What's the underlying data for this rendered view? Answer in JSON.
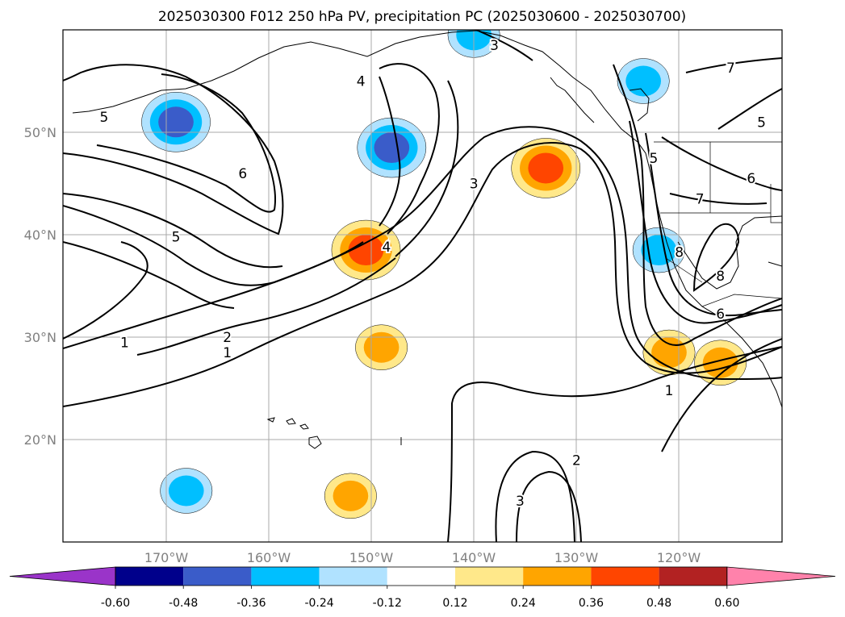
{
  "chart_data": {
    "type": "contour map",
    "title": "2025030300 F012 250 hPa PV, precipitation PC (2025030600 - 2025030700)",
    "map": {
      "lon_range": [
        -180,
        -110
      ],
      "lat_range": [
        10,
        60
      ],
      "grid": true,
      "x_ticks": [
        {
          "value": -170,
          "label": "170°W"
        },
        {
          "value": -160,
          "label": "160°W"
        },
        {
          "value": -150,
          "label": "150°W"
        },
        {
          "value": -140,
          "label": "140°W"
        },
        {
          "value": -130,
          "label": "130°W"
        },
        {
          "value": -120,
          "label": "120°W"
        }
      ],
      "y_ticks": [
        {
          "value": 20,
          "label": "20°N"
        },
        {
          "value": 30,
          "label": "30°N"
        },
        {
          "value": 40,
          "label": "40°N"
        },
        {
          "value": 50,
          "label": "50°N"
        }
      ]
    },
    "contour_labels": [
      {
        "text": "1",
        "lon": -174,
        "lat": 29.5
      },
      {
        "text": "2",
        "lon": -164,
        "lat": 30
      },
      {
        "text": "1",
        "lon": -164,
        "lat": 28.5
      },
      {
        "text": "5",
        "lon": -169,
        "lat": 39.8
      },
      {
        "text": "6",
        "lon": -162.5,
        "lat": 46
      },
      {
        "text": "5",
        "lon": -176,
        "lat": 51.5
      },
      {
        "text": "4",
        "lon": -148.5,
        "lat": 38.8
      },
      {
        "text": "4",
        "lon": -151,
        "lat": 55
      },
      {
        "text": "3",
        "lon": -140,
        "lat": 45
      },
      {
        "text": "3",
        "lon": -138,
        "lat": 58.5
      },
      {
        "text": "5",
        "lon": -122.5,
        "lat": 47.5
      },
      {
        "text": "7",
        "lon": -115,
        "lat": 56.3
      },
      {
        "text": "5",
        "lon": -112,
        "lat": 51
      },
      {
        "text": "6",
        "lon": -113,
        "lat": 45.5
      },
      {
        "text": "7",
        "lon": -118,
        "lat": 43.5
      },
      {
        "text": "8",
        "lon": -120,
        "lat": 38.3
      },
      {
        "text": "8",
        "lon": -116,
        "lat": 36
      },
      {
        "text": "6",
        "lon": -116,
        "lat": 32.3
      },
      {
        "text": "1",
        "lon": -121,
        "lat": 24.8
      },
      {
        "text": "2",
        "lon": -130,
        "lat": 18
      },
      {
        "text": "3",
        "lon": -135.5,
        "lat": 14
      }
    ],
    "colorbar": {
      "ticks": [
        "-0.60",
        "-0.48",
        "-0.36",
        "-0.24",
        "-0.12",
        "0.12",
        "0.24",
        "0.36",
        "0.48",
        "0.60"
      ],
      "boundaries": [
        -0.6,
        -0.48,
        -0.36,
        -0.24,
        -0.12,
        0.12,
        0.24,
        0.36,
        0.48,
        0.6
      ],
      "colors": [
        "#9a34c9",
        "#00008b",
        "#3a5cc9",
        "#00bfff",
        "#b0e2ff",
        "#ffffff",
        "#ffe88a",
        "#ffa500",
        "#ff4500",
        "#b22222",
        "#ff82ab"
      ],
      "extend": "both"
    },
    "precip_anomalies": [
      {
        "lon": -169,
        "lat": 51,
        "value": -0.45
      },
      {
        "lon": -148,
        "lat": 48.5,
        "value": -0.42
      },
      {
        "lon": -122,
        "lat": 38.5,
        "value": -0.3
      },
      {
        "lon": -123.5,
        "lat": 55,
        "value": -0.35
      },
      {
        "lon": -140,
        "lat": 59.5,
        "value": -0.25
      },
      {
        "lon": -168,
        "lat": 15,
        "value": -0.3
      },
      {
        "lon": -150.5,
        "lat": 38.5,
        "value": 0.45
      },
      {
        "lon": -133,
        "lat": 46.5,
        "value": 0.38
      },
      {
        "lon": -149,
        "lat": 29,
        "value": 0.3
      },
      {
        "lon": -121,
        "lat": 28.5,
        "value": 0.3
      },
      {
        "lon": -152,
        "lat": 14.5,
        "value": 0.3
      },
      {
        "lon": -116,
        "lat": 27.5,
        "value": 0.3
      }
    ]
  }
}
